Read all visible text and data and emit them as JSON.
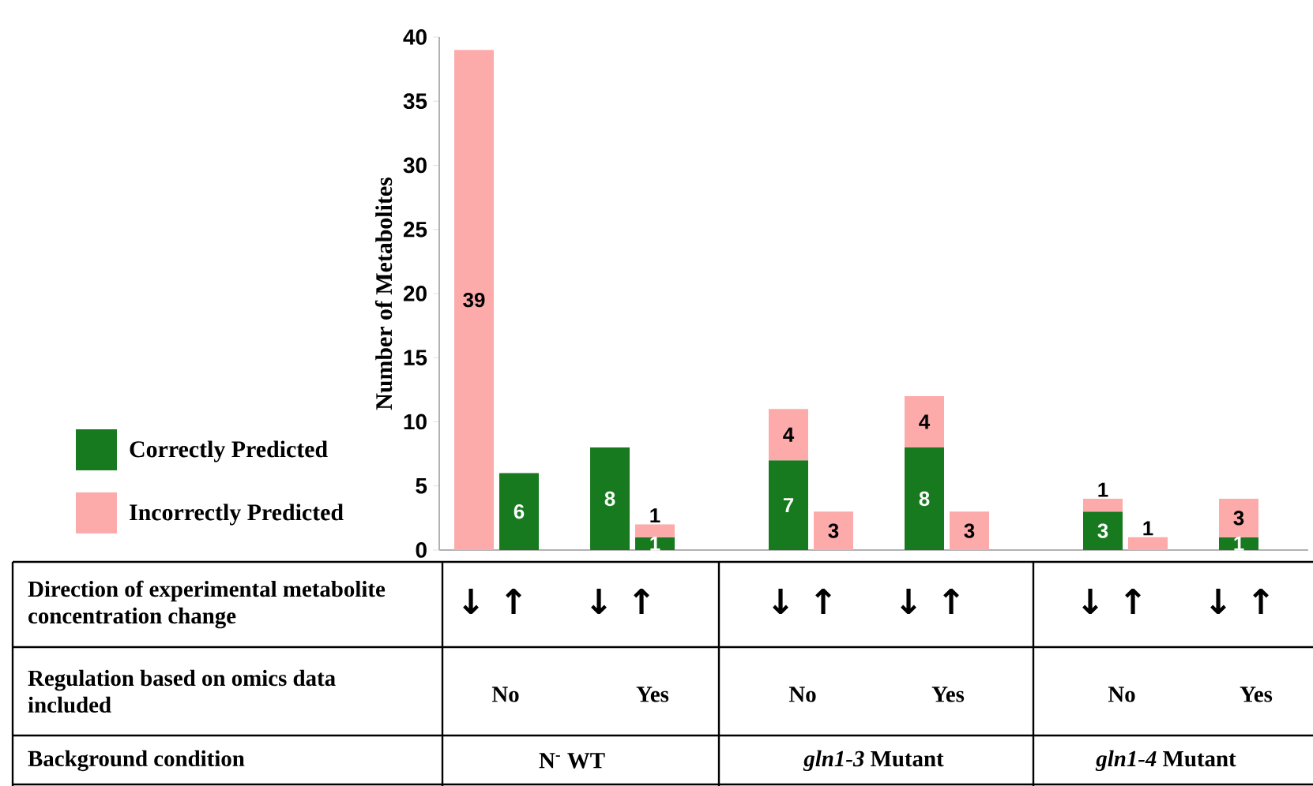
{
  "chart_data": {
    "type": "bar",
    "stacked": true,
    "ylabel": "Number of Metabolites",
    "categories": [
      "↓",
      "↑",
      "↓",
      "↑",
      "↓",
      "↑",
      "↓",
      "↑",
      "↓",
      "↑",
      "↓",
      "↑"
    ],
    "series": [
      {
        "name": "Correctly Predicted",
        "color": "#177a1e",
        "values": [
          null,
          6,
          8,
          1,
          7,
          null,
          8,
          null,
          3,
          null,
          1,
          null
        ]
      },
      {
        "name": "Incorrectly Predicted",
        "color": "#fcaaaa",
        "values": [
          39,
          null,
          null,
          1,
          4,
          3,
          4,
          3,
          1,
          1,
          3,
          null
        ]
      }
    ],
    "ylim": [
      0,
      40
    ],
    "yticks": [
      0,
      5,
      10,
      15,
      20,
      25,
      30,
      35,
      40
    ],
    "data_labels": true,
    "legend": "left",
    "annotations": [
      "Direction of experimental metabolite concentration change",
      "Regulation based on omics data included",
      "Background condition",
      "No",
      "Yes",
      "No",
      "Yes",
      "No",
      "Yes",
      "N$^{-}$ WT",
      "*gln1-3* Mutant",
      "*gln1-4* Mutant"
    ]
  }
}
